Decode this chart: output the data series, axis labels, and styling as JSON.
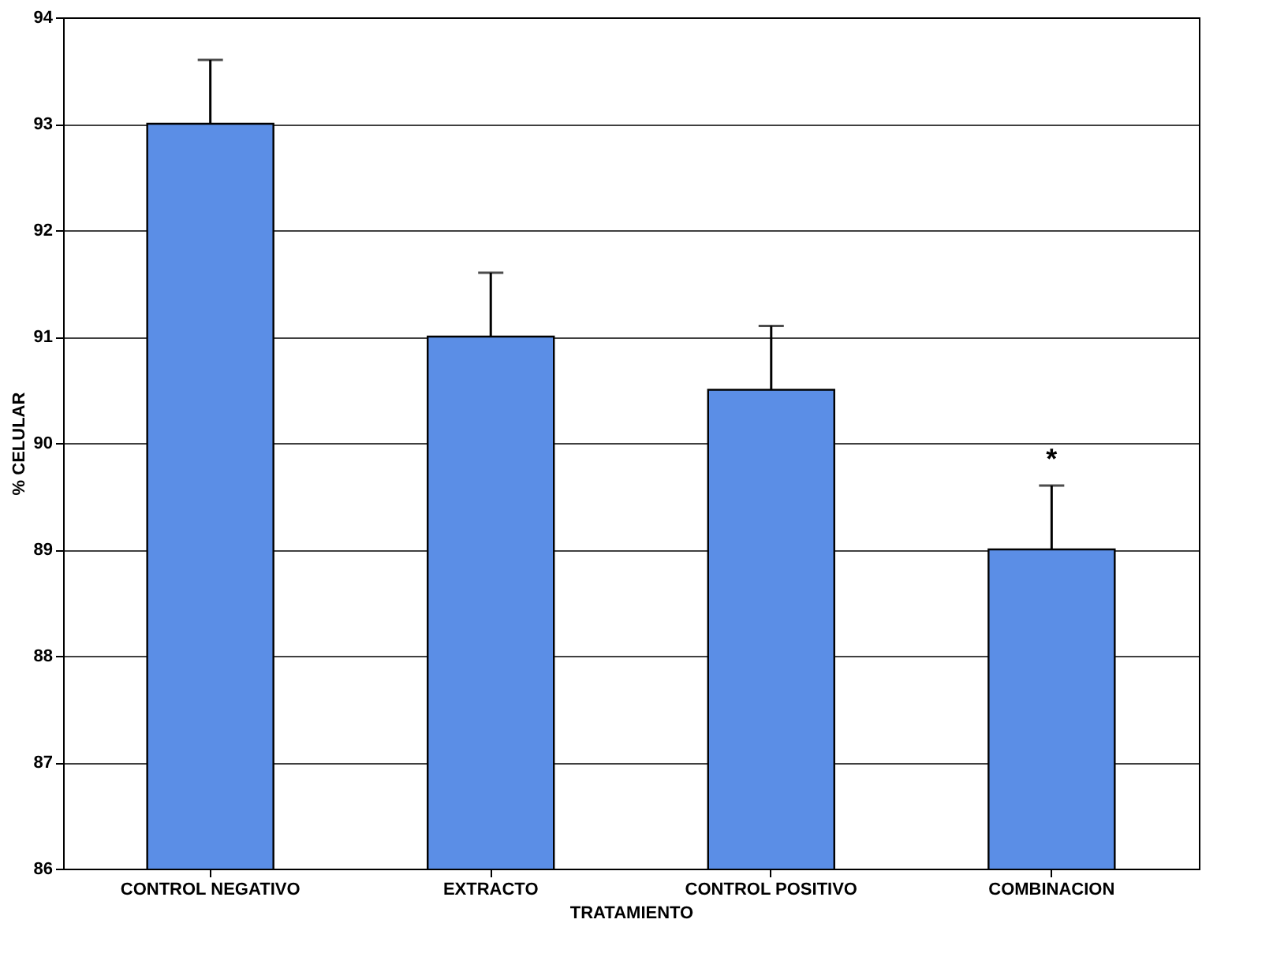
{
  "chart_data": {
    "type": "bar",
    "xlabel": "TRATAMIENTO",
    "ylabel": "% CELULAR",
    "categories": [
      "CONTROL NEGATIVO",
      "EXTRACTO",
      "CONTROL POSITIVO",
      "COMBINACION"
    ],
    "values": [
      93,
      91,
      90.5,
      89
    ],
    "errors": [
      [
        93,
        93.6
      ],
      [
        91,
        91.6
      ],
      [
        90.5,
        91.1
      ],
      [
        89,
        89.6
      ]
    ],
    "color": "#5b8ee6",
    "ylim": [
      86,
      94
    ],
    "yticks": [
      86,
      87,
      88,
      89,
      90,
      91,
      92,
      93,
      94
    ],
    "grid": "y",
    "annotations": [
      "*"
    ]
  }
}
